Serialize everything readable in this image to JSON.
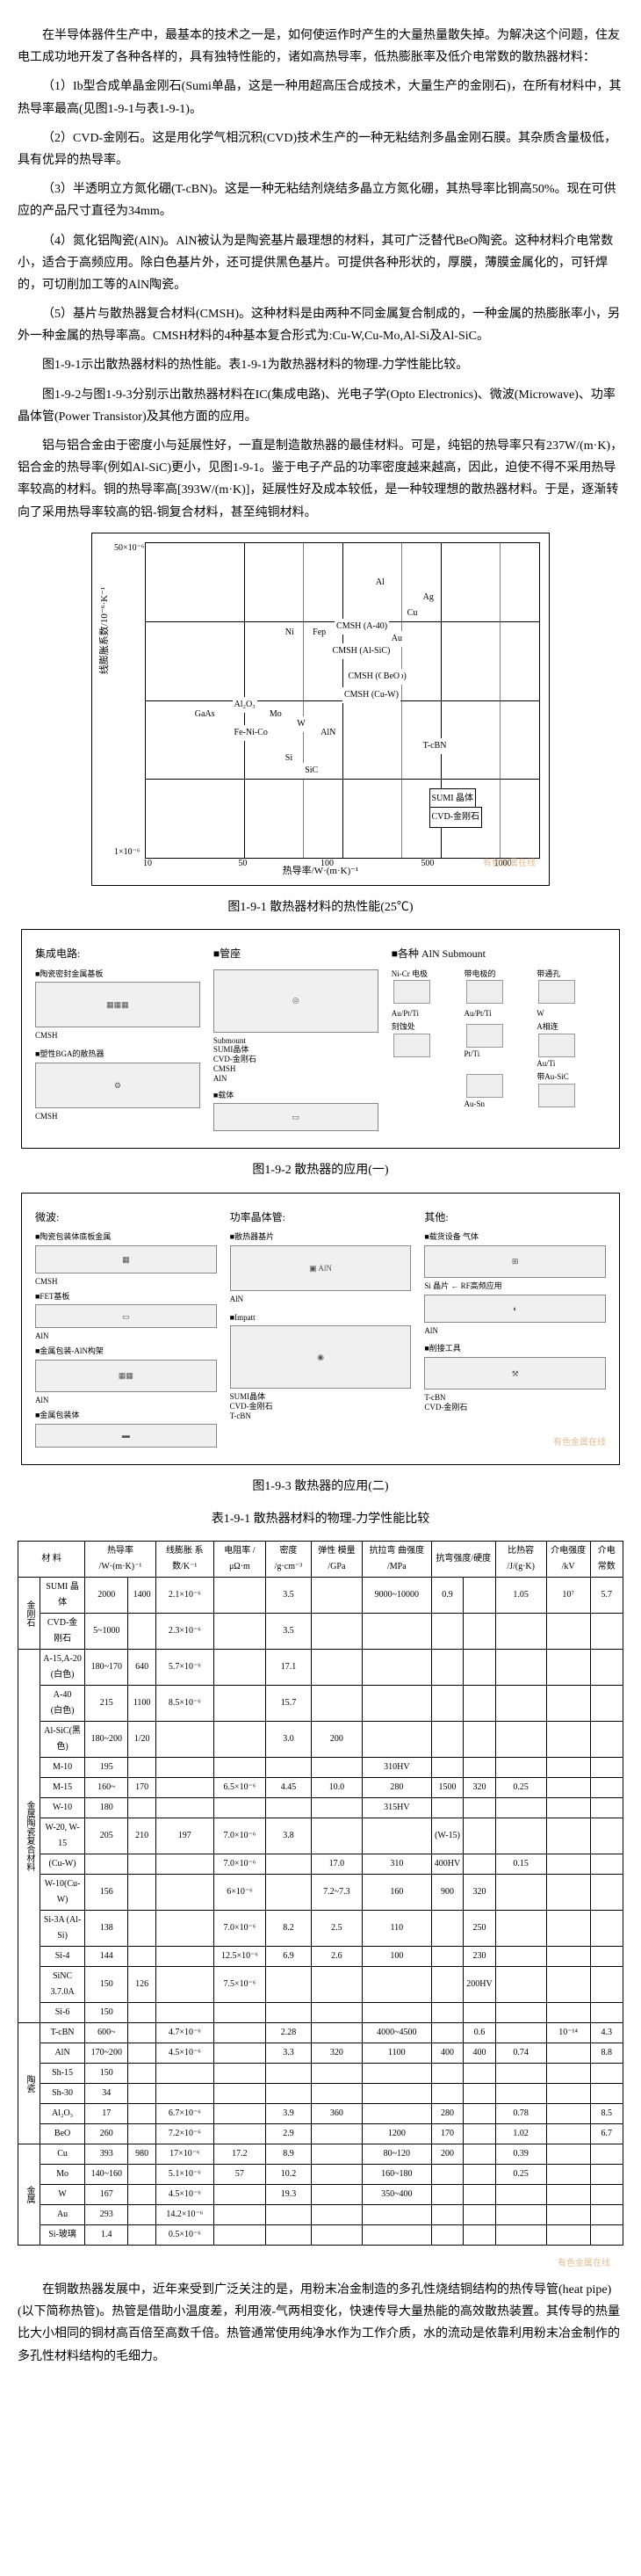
{
  "paragraphs": {
    "p1": "在半导体器件生产中，最基本的技术之一是，如何使运作时产生的大量热量散失掉。为解决这个问题，住友电工成功地开发了各种各样的，具有独特性能的，诸如高热导率，低热膨胀率及低介电常数的散热器材料：",
    "item1": "（1）Ib型合成单晶金刚石(Sumi单晶，这是一种用超高压合成技术，大量生产的金刚石)，在所有材料中，其热导率最高(见图1-9-1与表1-9-1)。",
    "item2": "（2）CVD-金刚石。这是用化学气相沉积(CVD)技术生产的一种无粘结剂多晶金刚石膜。其杂质含量极低，具有优异的热导率。",
    "item3": "（3）半透明立方氮化硼(T-cBN)。这是一种无粘结剂烧结多晶立方氮化硼，其热导率比铜高50%。现在可供应的产品尺寸直径为34mm。",
    "item4": "（4）氮化铝陶瓷(AlN)。AlN被认为是陶瓷基片最理想的材料，其可广泛替代BeO陶瓷。这种材料介电常数小，适合于高频应用。除白色基片外，还可提供黑色基片。可提供各种形状的，厚膜，薄膜金属化的，可钎焊的，可切削加工等的AlN陶瓷。",
    "item5": "（5）基片与散热器复合材料(CMSH)。这种材料是由两种不同金属复合制成的，一种金属的热膨胀率小，另外一种金属的热导率高。CMSH材料的4种基本复合形式为:Cu-W,Cu-Mo,Al-Si及Al-SiC。",
    "p2": "图1-9-1示出散热器材料的热性能。表1-9-1为散热器材料的物理-力学性能比较。",
    "p3": "图1-9-2与图1-9-3分别示出散热器材料在IC(集成电路)、光电子学(Opto Electronics)、微波(Microwave)、功率晶体管(Power Transistor)及其他方面的应用。",
    "p4": "铝与铝合金由于密度小与延展性好，一直是制造散热器的最佳材料。可是，纯铝的热导率只有237W/(m·K)，铝合金的热导率(例如Al-SiC)更小，见图1-9-1。鉴于电子产品的功率密度越来越高，因此，迫使不得不采用热导率较高的材料。铜的热导率高[393W/(m·K)]，延展性好及成本较低，是一种较理想的散热器材料。于是，逐渐转向了采用热导率较高的铝-铜复合材料，甚至纯铜材料。",
    "p5": "在铜散热器发展中，近年来受到广泛关注的是，用粉末冶金制造的多孔性烧结铜结构的热传导管(heat pipe)(以下简称热管)。热管是借助小温度差，利用液-气两相变化，快速传导大量热能的高效散热装置。其传导的热量比大小相同的铜材高百倍至高数千倍。热管通常使用纯净水作为工作介质，水的流动是依靠利用粉末冶金制作的多孔性材料结构的毛细力。"
  },
  "figure_titles": {
    "f1": "图1-9-1 散热器材料的热性能(25℃)",
    "f2": "图1-9-2 散热器的应用(一)",
    "f3": "图1-9-3 散热器的应用(二)",
    "t1": "表1-9-1 散热器材料的物理-力学性能比较"
  },
  "chart": {
    "y_label": "线膨胀系数/10⁻⁶·K⁻¹",
    "x_label": "热导率/W·(m·K)⁻¹",
    "y_top": "50×10⁻⁶",
    "y_bottom": "1×10⁻⁶",
    "x_ticks": [
      "10",
      "50",
      "100",
      "500",
      "1000"
    ],
    "materials": {
      "Al": "Al",
      "Ag": "Ag",
      "Cu": "Cu",
      "Au": "Au",
      "Ni": "Ni",
      "Fep": "Fep",
      "GaAs": "GaAs",
      "Si": "Si",
      "W": "W",
      "Mo": "Mo",
      "AlN": "AlN",
      "BeO": "BeO",
      "SiC": "SiC",
      "Al2O3": "Al₂O₃",
      "FeNiCo": "Fe-Ni-Co",
      "CMSH_A40": "CMSH (A-40)",
      "CMSH_AlSiC": "CMSH (Al-SiC)",
      "CMSH_CuMo": "CMSH (Cu-Mo)",
      "CMSH_CuW": "CMSH (Cu-W)",
      "TcBN": "T-cBN",
      "SUMI": "SUMI 晶体",
      "CVD": "CVD-金刚石"
    },
    "watermark": "有色金属在线"
  },
  "diagram2": {
    "col1_title": "集成电路:",
    "col1_item1": "■陶瓷密封金属基板",
    "col1_item2": "CMSH",
    "col1_item3": "■塑性BGA的散热器",
    "col1_item4": "CMSH",
    "col2_title": "■管座",
    "col2_sub": "Submount",
    "col2_mat": "SUMI晶体\nCVD-金刚石\nCMSH\nAlN",
    "col2_item2": "■载体",
    "col3_title": "■各种 AlN Submount",
    "col3_labels": [
      "Ni-Cr 电极",
      "带电极的",
      "带通孔",
      "Au/Pt/Ti",
      "Au/Pt/Ti",
      "W",
      "刻蚀处",
      "Pt/Ti",
      "Au/Ti",
      "A相连",
      "Au-Sn",
      "带Au-SiC"
    ]
  },
  "diagram3": {
    "col1_title": "微波:",
    "col1_item1": "■陶瓷包装体底板金属",
    "col1_item2": "CMSH",
    "col1_item3": "■FET基板",
    "col1_item4": "AlN",
    "col1_item5": "■金属包装-AlN构架",
    "col1_item6": "AlN",
    "col1_item7": "■金属包装体",
    "col2_title": "功率晶体管:",
    "col2_item1": "■散热器基片",
    "col2_item2": "AlN",
    "col2_item3": "■Impatt",
    "col2_mat": "SUMI晶体\nCVD-金刚石\nT-cBN",
    "col3_title": "其他:",
    "col3_item1": "■载货设备 气体",
    "col3_item2": "Si 晶片",
    "col3_item3": "AlN",
    "col3_item4": "RF高频应用",
    "col3_item5": "■削接工具",
    "col3_mat": "T-cBN\nCVD-金刚石"
  },
  "table": {
    "headers": [
      "材 料",
      "热导率\n/W·(m·K)⁻¹",
      "线膨胀\n系数/K⁻¹",
      "电阻率\n/μΩ·m",
      "密度\n/g·cm⁻³",
      "弹性\n模量\n/GPa",
      "抗拉弯\n曲强度\n/MPa",
      "抗弯强度/硬度",
      "比热容\n/J/(g·K)",
      "介电强度\n/kV",
      "介电\n常数"
    ],
    "group_diamond": "金刚石",
    "group_cmsh": "金属陶瓷复合材料",
    "group_ceramic": "陶瓷",
    "group_metal": "金属",
    "rows_diamond": [
      [
        "SUMI 晶体",
        "2000",
        "1400",
        "2.1×10⁻⁶",
        "",
        "3.5",
        "",
        "9000~10000",
        "0.9",
        "",
        "1.05",
        "10⁷",
        "5.7"
      ],
      [
        "CVD-金刚石",
        "5~1000",
        "",
        "2.3×10⁻⁶",
        "",
        "3.5",
        "",
        "",
        "",
        "",
        "",
        "",
        ""
      ]
    ],
    "rows_cmsh": [
      [
        "A-15,A-20\n(白色)",
        "180~170",
        "640",
        "5.7×10⁻⁶",
        "",
        "17.1",
        "",
        "",
        "",
        "",
        "",
        "",
        ""
      ],
      [
        "A-40\n(白色)",
        "215",
        "1100",
        "8.5×10⁻⁶",
        "",
        "15.7",
        "",
        "",
        "",
        "",
        "",
        "",
        ""
      ],
      [
        "Al-SiC(黑色)",
        "180~200",
        "1/20",
        "",
        "",
        "3.0",
        "200",
        "",
        "",
        "",
        "",
        "",
        ""
      ],
      [
        "M-10",
        "195",
        "",
        "",
        "",
        "",
        "",
        "310HV",
        "",
        "",
        "",
        "",
        ""
      ],
      [
        "M-15",
        "160~",
        "170",
        "",
        "6.5×10⁻⁶",
        "4.45",
        "10.0",
        "280",
        "1500",
        "320",
        "0.25",
        "",
        ""
      ],
      [
        "W-10",
        "180",
        "",
        "",
        "",
        "",
        "",
        "315HV",
        "",
        "",
        "",
        "",
        ""
      ],
      [
        "W-20, W-15",
        "205",
        "210",
        "197",
        "7.0×10⁻⁶",
        "3.8",
        "",
        "",
        "(W-15)",
        "",
        "",
        "",
        ""
      ],
      [
        "(Cu-W)",
        "",
        "",
        "",
        "7.0×10⁻⁶",
        "",
        "17.0",
        "310",
        "400HV",
        "",
        "0.15",
        "",
        ""
      ],
      [
        "W-10(Cu-W)",
        "156",
        "",
        "",
        "6×10⁻⁶",
        "",
        "7.2~7.3",
        "160",
        "900",
        "320",
        "",
        "",
        ""
      ],
      [
        "Si-3A (Al-Si)",
        "138",
        "",
        "",
        "7.0×10⁻⁶",
        "8.2",
        "2.5",
        "110",
        "",
        "250",
        "",
        "",
        ""
      ],
      [
        "Si-4",
        "144",
        "",
        "",
        "12.5×10⁻⁶",
        "6.9",
        "2.6",
        "100",
        "",
        "230",
        "",
        "",
        ""
      ],
      [
        "SiNC 3.7.0A",
        "150",
        "126",
        "",
        "7.5×10⁻⁶",
        "",
        "",
        "",
        "",
        "200HV",
        "",
        "",
        ""
      ],
      [
        "Si-6",
        "150",
        "",
        "",
        "",
        "",
        "",
        "",
        "",
        "",
        "",
        "",
        ""
      ]
    ],
    "rows_ceramic": [
      [
        "T-cBN",
        "600~",
        "",
        "4.7×10⁻⁶",
        "",
        "2.28",
        "",
        "4000~4500",
        "",
        "0.6",
        "",
        "10⁻¹⁴",
        "4.3"
      ],
      [
        "AlN",
        "170~200",
        "",
        "4.5×10⁻⁶",
        "",
        "3.3",
        "320",
        "1100",
        "400",
        "400",
        "0.74",
        "",
        "8.8"
      ],
      [
        "Sh-15",
        "150",
        "",
        "",
        "",
        "",
        "",
        "",
        "",
        "",
        "",
        "",
        ""
      ],
      [
        "Sh-30",
        "34",
        "",
        "",
        "",
        "",
        "",
        "",
        "",
        "",
        "",
        "",
        ""
      ],
      [
        "Al₂O₃",
        "17",
        "",
        "6.7×10⁻⁶",
        "",
        "3.9",
        "360",
        "",
        "280",
        "",
        "0.78",
        "",
        "8.5"
      ],
      [
        "BeO",
        "260",
        "",
        "7.2×10⁻⁶",
        "",
        "2.9",
        "",
        "1200",
        "170",
        "",
        "1.02",
        "",
        "6.7"
      ]
    ],
    "rows_metal": [
      [
        "Cu",
        "393",
        "980",
        "17×10⁻⁶",
        "17.2",
        "8.9",
        "",
        "80~120",
        "200",
        "",
        "0.39",
        "",
        ""
      ],
      [
        "Mo",
        "140~160",
        "",
        "5.1×10⁻⁶",
        "57",
        "10.2",
        "",
        "160~180",
        "",
        "",
        "0.25",
        "",
        ""
      ],
      [
        "W",
        "167",
        "",
        "4.5×10⁻⁶",
        "",
        "19.3",
        "",
        "350~400",
        "",
        "",
        "",
        "",
        ""
      ],
      [
        "Au",
        "293",
        "",
        "14.2×10⁻⁶",
        "",
        "",
        "",
        "",
        "",
        "",
        "",
        "",
        ""
      ],
      [
        "Si-玻璃",
        "1.4",
        "",
        "0.5×10⁻⁶",
        "",
        "",
        "",
        "",
        "",
        "",
        "",
        "",
        ""
      ]
    ]
  }
}
